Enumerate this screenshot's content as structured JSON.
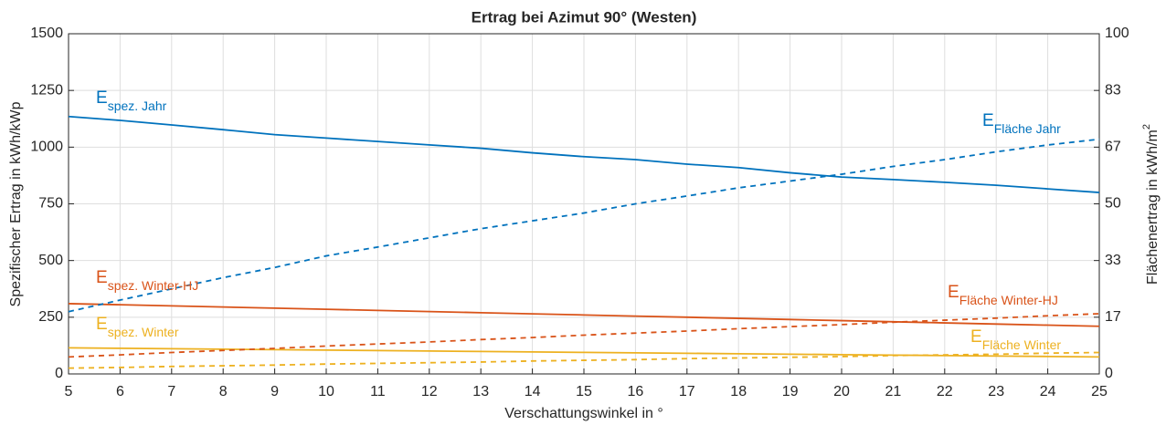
{
  "chart_data": {
    "type": "line",
    "title": "Ertrag bei Azimut 90° (Westen)",
    "xlabel": "Verschattungswinkel in °",
    "ylabel": "Spezifischer Ertrag in kWh/kWp",
    "y2label": "Flächenertrag in kWh/m",
    "y2label_sup": "2",
    "x": [
      5,
      6,
      7,
      8,
      9,
      10,
      11,
      12,
      13,
      14,
      15,
      16,
      17,
      18,
      19,
      20,
      21,
      22,
      23,
      24,
      25
    ],
    "xlim": [
      5,
      25
    ],
    "xticks": [
      5,
      6,
      7,
      8,
      9,
      10,
      11,
      12,
      13,
      14,
      15,
      16,
      17,
      18,
      19,
      20,
      21,
      22,
      23,
      24,
      25
    ],
    "ylim": [
      0,
      1500
    ],
    "yticks": [
      0,
      250,
      500,
      750,
      1000,
      {
        "value": 1250,
        "label": "1250"
      },
      1500
    ],
    "y2lim": [
      0,
      100
    ],
    "y2ticks": [
      0,
      {
        "value": 16.667,
        "label": "17"
      },
      {
        "value": 33.333,
        "label": "33"
      },
      50,
      {
        "value": 66.667,
        "label": "67"
      },
      {
        "value": 83.333,
        "label": "83"
      },
      100
    ],
    "grid": true,
    "series": [
      {
        "name": "spez. Jahr",
        "color": "#0072bd",
        "dash": false,
        "values": [
          1135,
          1118,
          1098,
          1077,
          1055,
          1040,
          1025,
          1010,
          995,
          975,
          958,
          945,
          925,
          910,
          887,
          868,
          857,
          845,
          832,
          816,
          800
        ]
      },
      {
        "name": "spez. Winter-HJ",
        "color": "#d95319",
        "dash": false,
        "values": [
          310,
          305,
          300,
          295,
          290,
          285,
          280,
          275,
          270,
          265,
          260,
          255,
          250,
          245,
          240,
          235,
          230,
          225,
          220,
          215,
          210
        ]
      },
      {
        "name": "spez. Winter",
        "color": "#edb120",
        "dash": false,
        "values": [
          115,
          113,
          111,
          109,
          107,
          105,
          103,
          101,
          99,
          97,
          95,
          93,
          91,
          89,
          87,
          85,
          83,
          81,
          79,
          77,
          75
        ]
      },
      {
        "name": "Fläche Jahr",
        "color": "#0072bd",
        "dash": true,
        "axis": "y2",
        "values": [
          18.3,
          21.7,
          25,
          28.3,
          31.3,
          34.7,
          37.3,
          40,
          42.7,
          45,
          47.3,
          50,
          52.3,
          54.7,
          56.7,
          58.7,
          61,
          63,
          65.3,
          67.3,
          69
        ]
      },
      {
        "name": "Fläche Winter-HJ",
        "color": "#d95319",
        "dash": true,
        "axis": "y2",
        "values": [
          5.0,
          5.6,
          6.3,
          6.9,
          7.5,
          8.2,
          8.8,
          9.4,
          10.1,
          10.7,
          11.4,
          12.0,
          12.6,
          13.3,
          13.9,
          14.5,
          15.2,
          15.8,
          16.4,
          17.1,
          17.7
        ]
      },
      {
        "name": "Fläche Winter",
        "color": "#edb120",
        "dash": true,
        "axis": "y2",
        "values": [
          1.7,
          1.9,
          2.2,
          2.4,
          2.6,
          2.9,
          3.1,
          3.3,
          3.5,
          3.8,
          4.0,
          4.2,
          4.5,
          4.7,
          4.9,
          5.1,
          5.4,
          5.6,
          5.8,
          6.1,
          6.3
        ]
      }
    ],
    "annotations": [
      {
        "text": "E",
        "subscript": "spez. Jahr",
        "color": "#0072bd"
      },
      {
        "text": "E",
        "subscript": "Fläche Jahr",
        "color": "#0072bd"
      },
      {
        "text": "E",
        "subscript": "spez. Winter-HJ",
        "color": "#d95319"
      },
      {
        "text": "E",
        "subscript": "Fläche Winter-HJ",
        "color": "#d95319"
      },
      {
        "text": "E",
        "subscript": "spez. Winter",
        "color": "#edb120"
      },
      {
        "text": "E",
        "subscript": "Fläche Winter",
        "color": "#edb120"
      }
    ]
  }
}
